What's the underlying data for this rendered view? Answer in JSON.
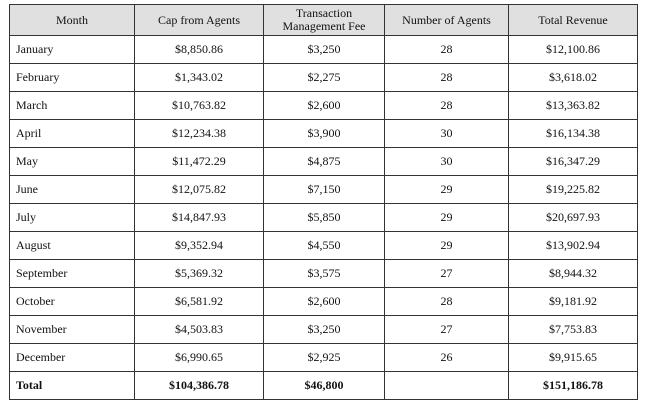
{
  "table": {
    "headers": {
      "month": "Month",
      "cap": "Cap from Agents",
      "fee_line1": "Transaction",
      "fee_line2": "Management Fee",
      "agents": "Number of Agents",
      "revenue": "Total Revenue"
    },
    "rows": [
      {
        "month": "January",
        "cap": "$8,850.86",
        "fee": "$3,250",
        "agents": "28",
        "revenue": "$12,100.86"
      },
      {
        "month": "February",
        "cap": "$1,343.02",
        "fee": "$2,275",
        "agents": "28",
        "revenue": "$3,618.02"
      },
      {
        "month": "March",
        "cap": "$10,763.82",
        "fee": "$2,600",
        "agents": "28",
        "revenue": "$13,363.82"
      },
      {
        "month": "April",
        "cap": "$12,234.38",
        "fee": "$3,900",
        "agents": "30",
        "revenue": "$16,134.38"
      },
      {
        "month": "May",
        "cap": "$11,472.29",
        "fee": "$4,875",
        "agents": "30",
        "revenue": "$16,347.29"
      },
      {
        "month": "June",
        "cap": "$12,075.82",
        "fee": "$7,150",
        "agents": "29",
        "revenue": "$19,225.82"
      },
      {
        "month": "July",
        "cap": "$14,847.93",
        "fee": "$5,850",
        "agents": "29",
        "revenue": "$20,697.93"
      },
      {
        "month": "August",
        "cap": "$9,352.94",
        "fee": "$4,550",
        "agents": "29",
        "revenue": "$13,902.94"
      },
      {
        "month": "September",
        "cap": "$5,369.32",
        "fee": "$3,575",
        "agents": "27",
        "revenue": "$8,944.32"
      },
      {
        "month": "October",
        "cap": "$6,581.92",
        "fee": "$2,600",
        "agents": "28",
        "revenue": "$9,181.92"
      },
      {
        "month": "November",
        "cap": "$4,503.83",
        "fee": "$3,250",
        "agents": "27",
        "revenue": "$7,753.83"
      },
      {
        "month": "December",
        "cap": "$6,990.65",
        "fee": "$2,925",
        "agents": "26",
        "revenue": "$9,915.65"
      }
    ],
    "total": {
      "label": "Total",
      "cap": "$104,386.78",
      "fee": "$46,800",
      "agents": "",
      "revenue": "$151,186.78"
    },
    "header_bg": "#e0e0e0",
    "border_color": "#333333"
  }
}
